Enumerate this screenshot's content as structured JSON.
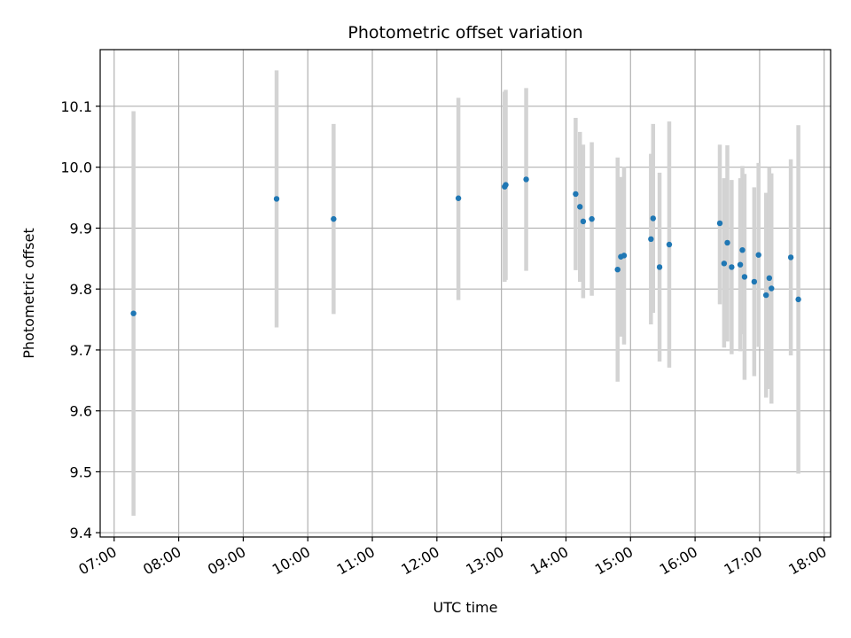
{
  "chart_data": {
    "type": "scatter",
    "title": "Photometric offset variation",
    "xlabel": "UTC time",
    "ylabel": "Photometric offset",
    "x_tick_labels": [
      "07:00",
      "08:00",
      "09:00",
      "10:00",
      "11:00",
      "12:00",
      "13:00",
      "14:00",
      "15:00",
      "16:00",
      "17:00",
      "18:00"
    ],
    "y_ticks": [
      9.4,
      9.5,
      9.6,
      9.7,
      9.8,
      9.9,
      10.0,
      10.1
    ],
    "y_tick_labels": [
      "9.4",
      "9.5",
      "9.6",
      "9.7",
      "9.8",
      "9.9",
      "10.0",
      "10.1"
    ],
    "xlim": [
      "06:47",
      "18:06"
    ],
    "ylim": [
      9.393,
      10.193
    ],
    "grid": true,
    "point_color": "#1f77b4",
    "errorbar_color": "#d3d3d3",
    "points": [
      {
        "x": "07:18",
        "y": 9.76,
        "ylow": 9.428,
        "yhigh": 10.092
      },
      {
        "x": "09:31",
        "y": 9.948,
        "ylow": 9.737,
        "yhigh": 10.159
      },
      {
        "x": "10:24",
        "y": 9.915,
        "ylow": 9.759,
        "yhigh": 10.071
      },
      {
        "x": "12:20",
        "y": 9.949,
        "ylow": 9.782,
        "yhigh": 10.114
      },
      {
        "x": "13:03",
        "y": 9.968,
        "ylow": 9.812,
        "yhigh": 10.124
      },
      {
        "x": "13:04",
        "y": 9.971,
        "ylow": 9.815,
        "yhigh": 10.127
      },
      {
        "x": "13:23",
        "y": 9.98,
        "ylow": 9.83,
        "yhigh": 10.13
      },
      {
        "x": "14:09",
        "y": 9.956,
        "ylow": 9.831,
        "yhigh": 10.081
      },
      {
        "x": "14:13",
        "y": 9.935,
        "ylow": 9.812,
        "yhigh": 10.058
      },
      {
        "x": "14:16",
        "y": 9.911,
        "ylow": 9.785,
        "yhigh": 10.037
      },
      {
        "x": "14:24",
        "y": 9.915,
        "ylow": 9.789,
        "yhigh": 10.041
      },
      {
        "x": "14:48",
        "y": 9.832,
        "ylow": 9.648,
        "yhigh": 10.016
      },
      {
        "x": "14:51",
        "y": 9.853,
        "ylow": 9.722,
        "yhigh": 9.984
      },
      {
        "x": "14:54",
        "y": 9.855,
        "ylow": 9.709,
        "yhigh": 10.001
      },
      {
        "x": "15:19",
        "y": 9.882,
        "ylow": 9.742,
        "yhigh": 10.022
      },
      {
        "x": "15:21",
        "y": 9.916,
        "ylow": 9.761,
        "yhigh": 10.071
      },
      {
        "x": "15:27",
        "y": 9.836,
        "ylow": 9.681,
        "yhigh": 9.991
      },
      {
        "x": "15:36",
        "y": 9.873,
        "ylow": 9.671,
        "yhigh": 10.075
      },
      {
        "x": "16:23",
        "y": 9.908,
        "ylow": 9.775,
        "yhigh": 10.037
      },
      {
        "x": "16:27",
        "y": 9.842,
        "ylow": 9.704,
        "yhigh": 9.982
      },
      {
        "x": "16:30",
        "y": 9.876,
        "ylow": 9.714,
        "yhigh": 10.036
      },
      {
        "x": "16:34",
        "y": 9.836,
        "ylow": 9.693,
        "yhigh": 9.979
      },
      {
        "x": "16:42",
        "y": 9.84,
        "ylow": 9.698,
        "yhigh": 9.982
      },
      {
        "x": "16:44",
        "y": 9.864,
        "ylow": 9.726,
        "yhigh": 10.002
      },
      {
        "x": "16:46",
        "y": 9.82,
        "ylow": 9.651,
        "yhigh": 9.989
      },
      {
        "x": "16:55",
        "y": 9.812,
        "ylow": 9.657,
        "yhigh": 9.967
      },
      {
        "x": "16:59",
        "y": 9.856,
        "ylow": 9.705,
        "yhigh": 10.007
      },
      {
        "x": "17:06",
        "y": 9.79,
        "ylow": 9.622,
        "yhigh": 9.958
      },
      {
        "x": "17:09",
        "y": 9.818,
        "ylow": 9.636,
        "yhigh": 10.0
      },
      {
        "x": "17:11",
        "y": 9.801,
        "ylow": 9.612,
        "yhigh": 9.99
      },
      {
        "x": "17:29",
        "y": 9.852,
        "ylow": 9.691,
        "yhigh": 10.013
      },
      {
        "x": "17:36",
        "y": 9.783,
        "ylow": 9.497,
        "yhigh": 10.069
      }
    ]
  }
}
